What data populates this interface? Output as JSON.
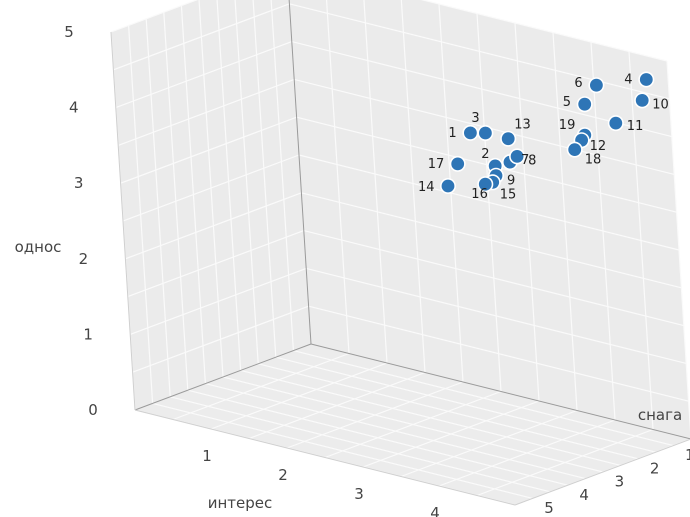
{
  "chart_data": {
    "type": "scatter",
    "title": "",
    "xlabel": "интерес",
    "ylabel": "однос",
    "zlabel": "снага",
    "xlim": [
      0,
      5
    ],
    "ylim": [
      0,
      5
    ],
    "zlim": [
      0,
      5
    ],
    "x_ticks": [
      "1",
      "2",
      "3",
      "4",
      "5"
    ],
    "y_ticks": [
      "0",
      "1",
      "2",
      "3",
      "4",
      "5"
    ],
    "z_ticks": [
      "0",
      "1",
      "2",
      "3",
      "4",
      "5"
    ],
    "grid": true,
    "marker_color": "#2e75b6",
    "points": [
      {
        "label": "1",
        "x": 2.6,
        "y": 3.55,
        "z": 0.6
      },
      {
        "label": "2",
        "x": 3.0,
        "y": 3.25,
        "z": 0.8
      },
      {
        "label": "3",
        "x": 2.8,
        "y": 3.6,
        "z": 0.6
      },
      {
        "label": "4",
        "x": 4.9,
        "y": 4.8,
        "z": 0.4
      },
      {
        "label": "5",
        "x": 4.2,
        "y": 4.35,
        "z": 0.7
      },
      {
        "label": "6",
        "x": 4.3,
        "y": 4.6,
        "z": 0.55
      },
      {
        "label": "7",
        "x": 3.2,
        "y": 3.35,
        "z": 0.8
      },
      {
        "label": "8",
        "x": 3.3,
        "y": 3.45,
        "z": 0.8
      },
      {
        "label": "9",
        "x": 3.05,
        "y": 3.15,
        "z": 0.9
      },
      {
        "label": "10",
        "x": 4.9,
        "y": 4.55,
        "z": 0.55
      },
      {
        "label": "11",
        "x": 4.6,
        "y": 4.2,
        "z": 0.7
      },
      {
        "label": "12",
        "x": 4.2,
        "y": 3.9,
        "z": 0.85
      },
      {
        "label": "13",
        "x": 3.1,
        "y": 3.6,
        "z": 0.6
      },
      {
        "label": "14",
        "x": 2.4,
        "y": 2.85,
        "z": 0.9
      },
      {
        "label": "15",
        "x": 3.0,
        "y": 3.05,
        "z": 0.9
      },
      {
        "label": "16",
        "x": 2.9,
        "y": 3.0,
        "z": 0.9
      },
      {
        "label": "17",
        "x": 2.5,
        "y": 3.15,
        "z": 0.8
      },
      {
        "label": "18",
        "x": 4.1,
        "y": 3.75,
        "z": 0.85
      },
      {
        "label": "19",
        "x": 4.2,
        "y": 3.95,
        "z": 0.75
      }
    ]
  }
}
